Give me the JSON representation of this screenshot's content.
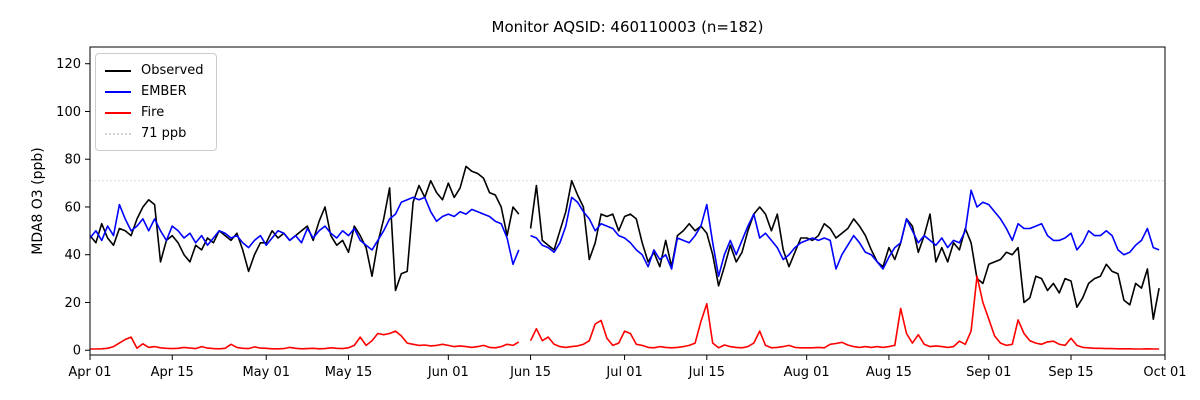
{
  "figure": {
    "title": "Monitor AQSID: 460110003 (n=182)",
    "ylabel": "MDA8 O3 (ppb)"
  },
  "chart_data": {
    "type": "line",
    "title": "Monitor AQSID: 460110003 (n=182)",
    "xlabel": "",
    "ylabel": "MDA8 O3 (ppb)",
    "ylim": [
      -2,
      127
    ],
    "y_ticks": [
      0,
      20,
      40,
      60,
      80,
      100,
      120
    ],
    "x_range_days": 183,
    "x_ticks": [
      {
        "label": "Apr 01",
        "day": 0
      },
      {
        "label": "Apr 15",
        "day": 14
      },
      {
        "label": "May 01",
        "day": 30
      },
      {
        "label": "May 15",
        "day": 44
      },
      {
        "label": "Jun 01",
        "day": 61
      },
      {
        "label": "Jun 15",
        "day": 75
      },
      {
        "label": "Jul 01",
        "day": 91
      },
      {
        "label": "Jul 15",
        "day": 105
      },
      {
        "label": "Aug 01",
        "day": 122
      },
      {
        "label": "Aug 15",
        "day": 136
      },
      {
        "label": "Sep 01",
        "day": 153
      },
      {
        "label": "Sep 15",
        "day": 167
      },
      {
        "label": "Oct 01",
        "day": 183
      }
    ],
    "grid": false,
    "legend_position": "upper-left",
    "threshold": {
      "label": "71 ppb",
      "value": 71,
      "color": "#d3d3d3",
      "style": "dotted"
    },
    "legend": [
      {
        "label": "Observed",
        "color": "#000000",
        "style": "solid"
      },
      {
        "label": "EMBER",
        "color": "#0000ff",
        "style": "solid"
      },
      {
        "label": "Fire",
        "color": "#ff0000",
        "style": "solid"
      },
      {
        "label": "71 ppb",
        "color": "#d3d3d3",
        "style": "dotted"
      }
    ],
    "series": [
      {
        "name": "Observed",
        "color": "#000000",
        "values": [
          48,
          45,
          53,
          47,
          44,
          51,
          50,
          48,
          55,
          60,
          63,
          61,
          37,
          46,
          48,
          45,
          40,
          37,
          44,
          42,
          47,
          45,
          50,
          48,
          46,
          49,
          42,
          33,
          40,
          45,
          45,
          50,
          47,
          49,
          46,
          48,
          50,
          52,
          46,
          54,
          60,
          48,
          44,
          46,
          41,
          52,
          48,
          43,
          31,
          45,
          55,
          68,
          25,
          32,
          33,
          62,
          69,
          64,
          71,
          66,
          63,
          70,
          64,
          68,
          77,
          75,
          74,
          72,
          66,
          65,
          60,
          48,
          60,
          57,
          null,
          51,
          69,
          46,
          44,
          42,
          50,
          58,
          71,
          65,
          60,
          38,
          45,
          57,
          56,
          57,
          50,
          56,
          57,
          55,
          45,
          37,
          41,
          35,
          46,
          35,
          48,
          50,
          53,
          50,
          52,
          49,
          40,
          27,
          35,
          44,
          37,
          41,
          50,
          57,
          60,
          57,
          50,
          57,
          42,
          35,
          41,
          47,
          47,
          46,
          48,
          53,
          51,
          47,
          49,
          51,
          55,
          52,
          48,
          42,
          37,
          35,
          43,
          38,
          45,
          55,
          52,
          41,
          48,
          57,
          37,
          43,
          37,
          45,
          42,
          51,
          45,
          30,
          28,
          36,
          37,
          38,
          41,
          40,
          43,
          20,
          22,
          31,
          30,
          25,
          28,
          24,
          30,
          29,
          18,
          22,
          28,
          30,
          31,
          36,
          33,
          32,
          21,
          19,
          28,
          26,
          34,
          13,
          26
        ]
      },
      {
        "name": "EMBER",
        "color": "#0000ff",
        "values": [
          47,
          50,
          46,
          52,
          48,
          61,
          55,
          50,
          52,
          55,
          50,
          55,
          50,
          46,
          52,
          50,
          47,
          49,
          45,
          48,
          44,
          47,
          50,
          49,
          47,
          48,
          45,
          43,
          46,
          48,
          44,
          47,
          50,
          49,
          46,
          48,
          45,
          51,
          47,
          50,
          52,
          49,
          47,
          50,
          48,
          51,
          46,
          44,
          42,
          46,
          50,
          55,
          57,
          62,
          63,
          64,
          63,
          64,
          58,
          54,
          56,
          57,
          56,
          58,
          57,
          59,
          58,
          57,
          56,
          54,
          53,
          47,
          36,
          42,
          null,
          48,
          47,
          44,
          43,
          41,
          45,
          52,
          64,
          62,
          58,
          55,
          50,
          53,
          52,
          51,
          48,
          47,
          45,
          42,
          40,
          35,
          42,
          38,
          40,
          34,
          47,
          46,
          45,
          48,
          52,
          61,
          45,
          31,
          40,
          46,
          40,
          46,
          52,
          57,
          47,
          49,
          46,
          43,
          38,
          40,
          43,
          45,
          46,
          47,
          46,
          47,
          46,
          34,
          40,
          44,
          48,
          45,
          41,
          40,
          37,
          34,
          39,
          43,
          45,
          55,
          50,
          45,
          48,
          46,
          44,
          47,
          43,
          46,
          45,
          50,
          67,
          60,
          62,
          61,
          58,
          55,
          51,
          46,
          53,
          51,
          51,
          52,
          53,
          48,
          46,
          46,
          47,
          49,
          42,
          45,
          50,
          48,
          48,
          50,
          48,
          42,
          40,
          41,
          44,
          46,
          51,
          43,
          42
        ]
      },
      {
        "name": "Fire",
        "color": "#ff0000",
        "values": [
          0.5,
          0.5,
          0.6,
          0.8,
          1.5,
          3,
          4.5,
          5.5,
          0.8,
          2.7,
          1.2,
          1.5,
          1,
          0.8,
          0.7,
          0.8,
          1.2,
          0.9,
          0.7,
          1.5,
          0.9,
          0.7,
          0.6,
          0.8,
          2.5,
          1.2,
          0.8,
          0.7,
          1.4,
          0.9,
          0.8,
          0.6,
          0.6,
          0.7,
          1.2,
          0.8,
          0.6,
          0.7,
          0.8,
          0.6,
          0.7,
          1,
          0.8,
          0.7,
          1,
          2,
          5.5,
          2,
          4,
          7,
          6.5,
          7,
          8,
          6,
          3,
          2.5,
          2,
          2.2,
          1.8,
          2,
          2.5,
          2,
          1.5,
          1.8,
          1.5,
          1.2,
          1.5,
          2,
          1.2,
          1,
          1.5,
          2.5,
          2,
          3.5,
          null,
          4,
          9,
          4,
          5.5,
          2.5,
          1.5,
          1.2,
          1.5,
          1.8,
          2.5,
          4,
          11,
          12.5,
          5,
          2,
          3,
          8,
          7,
          2.5,
          2,
          1.2,
          1,
          1.5,
          1.2,
          1,
          1.2,
          1.5,
          2,
          3,
          12,
          19.5,
          3,
          1,
          2.2,
          1.5,
          1.2,
          1,
          1.5,
          3,
          8,
          2,
          1,
          1.2,
          1.5,
          2,
          1.2,
          1,
          1,
          1,
          1.2,
          1,
          2.5,
          2.8,
          3.3,
          2.2,
          1.5,
          1.2,
          1.5,
          1.2,
          1.5,
          1.2,
          1.5,
          2,
          17.5,
          7,
          3,
          6.5,
          2.5,
          1.5,
          1.8,
          1.5,
          1.2,
          1.5,
          3.8,
          2.5,
          8,
          31,
          20,
          13,
          6,
          3,
          2,
          2.5,
          12.7,
          7,
          4,
          3,
          2.5,
          3.5,
          3.8,
          2.5,
          2,
          5,
          2,
          1.2,
          1,
          0.8,
          0.8,
          0.7,
          0.7,
          0.6,
          0.6,
          0.6,
          0.5,
          0.5,
          0.6,
          0.5,
          0.5
        ]
      }
    ]
  }
}
